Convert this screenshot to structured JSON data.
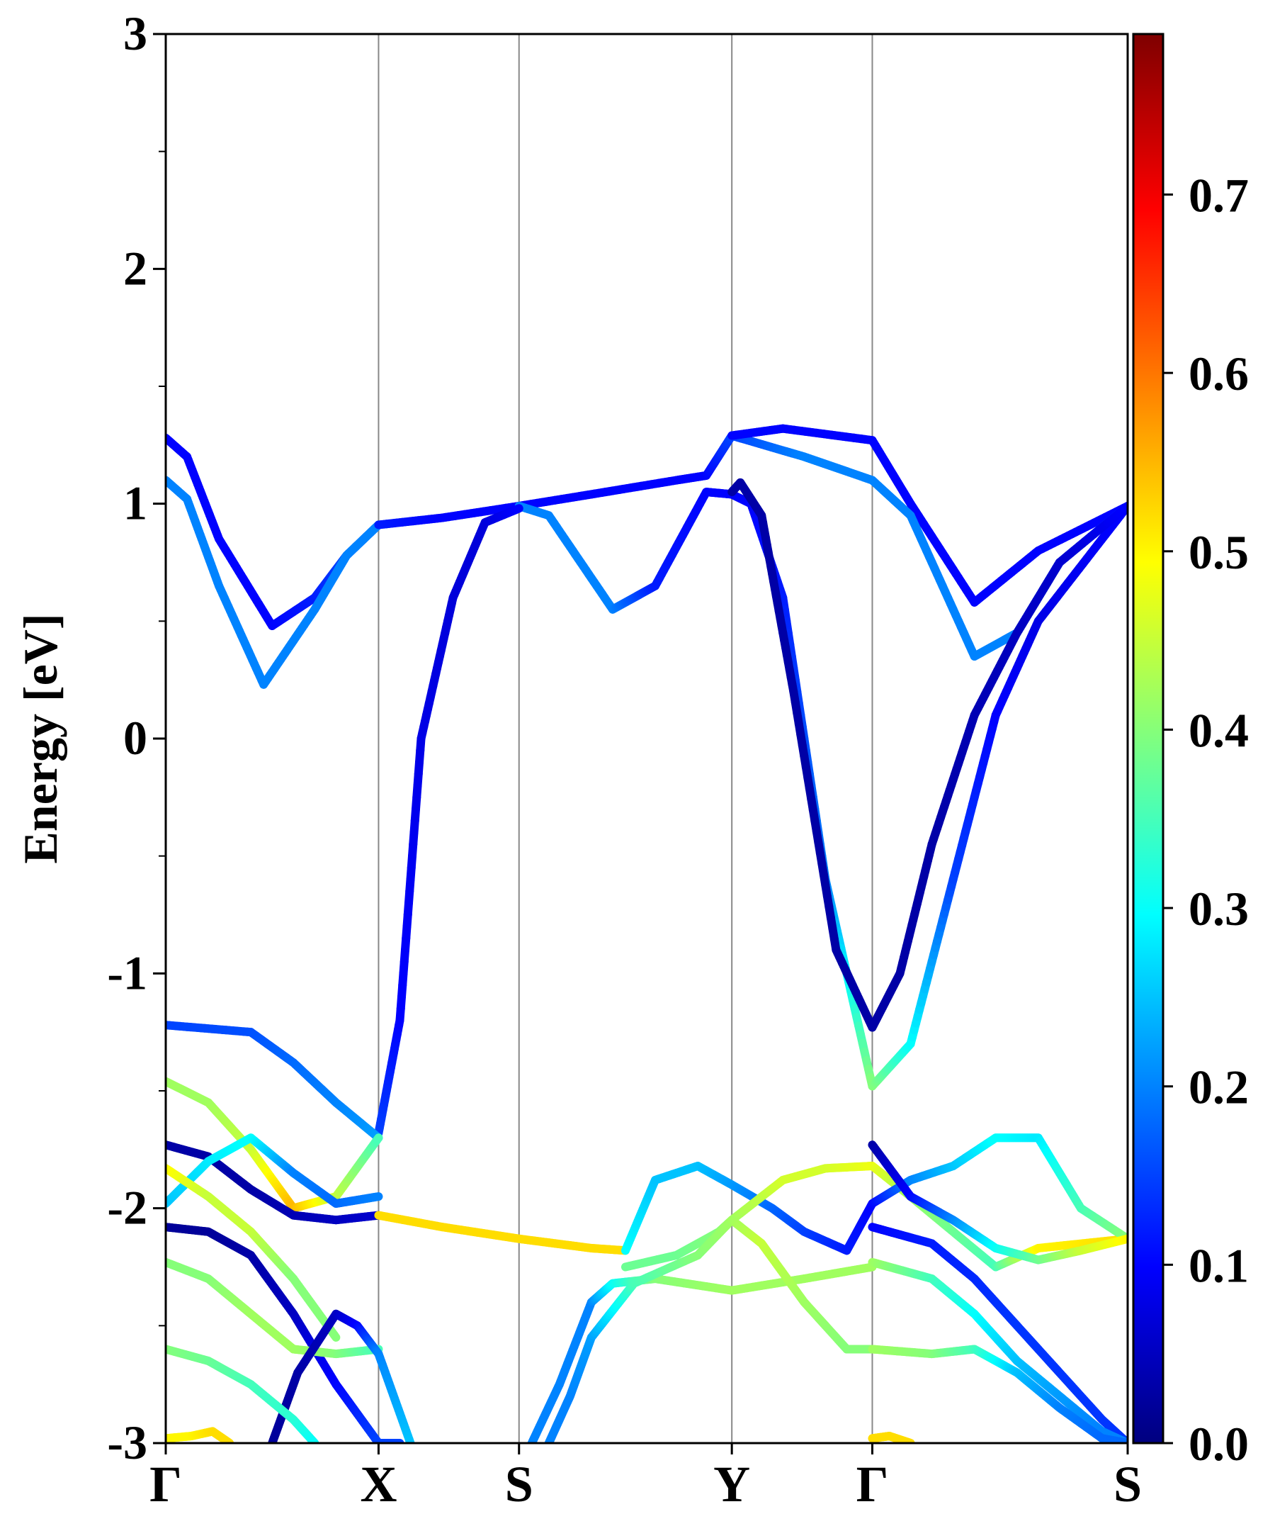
{
  "chart_data": {
    "type": "line",
    "title": "",
    "ylabel": "Energy [eV]",
    "xlabel": "",
    "ylim": [
      -3,
      3
    ],
    "yticks": [
      "3",
      "2",
      "1",
      "0",
      "-1",
      "-2",
      "-3"
    ],
    "kpoints": [
      {
        "label": "Γ",
        "x": 0.0
      },
      {
        "label": "X",
        "x": 1.0
      },
      {
        "label": "S",
        "x": 1.66
      },
      {
        "label": "Y",
        "x": 2.66
      },
      {
        "label": "Γ",
        "x": 3.32
      },
      {
        "label": "S",
        "x": 4.52
      }
    ],
    "xlim": [
      0,
      4.52
    ],
    "colorbar": {
      "min": 0.0,
      "max": 0.79,
      "ticks": [
        "0.0",
        "0.1",
        "0.2",
        "0.3",
        "0.4",
        "0.5",
        "0.6",
        "0.7"
      ],
      "colormap": "jet"
    },
    "bands": [
      {
        "x": [
          0,
          0.1,
          0.25,
          0.5,
          0.7,
          0.85,
          1.0
        ],
        "y": [
          1.28,
          1.2,
          0.85,
          0.48,
          0.6,
          0.78,
          0.91
        ],
        "weights": [
          0.1,
          0.1,
          0.1,
          0.1,
          0.12,
          0.15,
          0.18
        ]
      },
      {
        "x": [
          0,
          0.1,
          0.25,
          0.46,
          0.7,
          0.85,
          1.0
        ],
        "y": [
          1.1,
          1.02,
          0.65,
          0.23,
          0.55,
          0.78,
          0.91
        ],
        "weights": [
          0.2,
          0.2,
          0.2,
          0.2,
          0.2,
          0.2,
          0.2
        ]
      },
      {
        "x": [
          1.0,
          1.3,
          1.66,
          2.0,
          2.4,
          2.54,
          2.66,
          3.0,
          3.32
        ],
        "y": [
          0.91,
          0.94,
          0.99,
          1.04,
          1.1,
          1.12,
          1.29,
          1.2,
          1.1
        ],
        "weights": [
          0.12,
          0.1,
          0.1,
          0.1,
          0.1,
          0.1,
          0.15,
          0.2,
          0.2
        ]
      },
      {
        "x": [
          2.66,
          2.9,
          3.32,
          3.5,
          3.8,
          4.1,
          4.52
        ],
        "y": [
          1.29,
          1.32,
          1.27,
          1.0,
          0.58,
          0.8,
          0.99
        ],
        "weights": [
          0.1,
          0.1,
          0.1,
          0.1,
          0.1,
          0.1,
          0.1
        ]
      },
      {
        "x": [
          3.32,
          3.5,
          3.8,
          4.0,
          4.2,
          4.52
        ],
        "y": [
          1.1,
          0.95,
          0.35,
          0.45,
          0.75,
          0.99
        ],
        "weights": [
          0.2,
          0.2,
          0.2,
          0.2,
          0.2,
          0.2
        ]
      },
      {
        "x": [
          1.66,
          1.8,
          2.1,
          2.3,
          2.54,
          2.66
        ],
        "y": [
          0.99,
          0.95,
          0.55,
          0.65,
          1.05,
          1.04
        ],
        "weights": [
          0.2,
          0.2,
          0.2,
          0.12,
          0.1,
          0.1
        ]
      },
      {
        "x": [
          1.0,
          1.1,
          1.2,
          1.35,
          1.5,
          1.66
        ],
        "y": [
          -1.68,
          -1.2,
          0.0,
          0.6,
          0.92,
          0.98
        ],
        "weights": [
          0.15,
          0.1,
          0.08,
          0.07,
          0.07,
          0.1
        ]
      },
      {
        "x": [
          2.66,
          2.75,
          2.9,
          3.1,
          3.32,
          3.5,
          3.7,
          3.9,
          4.1,
          4.52
        ],
        "y": [
          1.04,
          1.0,
          0.6,
          -0.6,
          -1.48,
          -1.3,
          -0.6,
          0.1,
          0.5,
          0.99
        ],
        "weights": [
          0.1,
          0.1,
          0.12,
          0.2,
          0.4,
          0.3,
          0.15,
          0.1,
          0.08,
          0.1
        ]
      },
      {
        "x": [
          2.66,
          2.7,
          2.8,
          2.95,
          3.15,
          3.32,
          3.45,
          3.6,
          3.8,
          4.0,
          4.2,
          4.52
        ],
        "y": [
          1.05,
          1.09,
          0.95,
          0.2,
          -0.9,
          -1.23,
          -1.0,
          -0.45,
          0.1,
          0.45,
          0.75,
          0.99
        ],
        "weights": [
          0.03,
          0.03,
          0.03,
          0.03,
          0.03,
          0.03,
          0.03,
          0.03,
          0.04,
          0.05,
          0.06,
          0.1
        ]
      },
      {
        "x": [
          0,
          0.4,
          0.6,
          0.8,
          1.0
        ],
        "y": [
          -1.22,
          -1.25,
          -1.38,
          -1.55,
          -1.7
        ],
        "weights": [
          0.15,
          0.16,
          0.18,
          0.2,
          0.22
        ]
      },
      {
        "x": [
          0,
          0.2,
          0.4,
          0.6,
          0.8,
          1.0
        ],
        "y": [
          -1.46,
          -1.55,
          -1.75,
          -2.0,
          -1.95,
          -1.7
        ],
        "weights": [
          0.42,
          0.42,
          0.45,
          0.55,
          0.45,
          0.35
        ]
      },
      {
        "x": [
          0,
          0.2,
          0.4,
          0.6,
          0.8,
          1.0
        ],
        "y": [
          -1.73,
          -1.78,
          -1.92,
          -2.03,
          -2.05,
          -2.03
        ],
        "weights": [
          0.03,
          0.03,
          0.03,
          0.04,
          0.05,
          0.06
        ]
      },
      {
        "x": [
          0,
          0.2,
          0.4,
          0.6,
          0.8,
          1.0
        ],
        "y": [
          -1.98,
          -1.8,
          -1.7,
          -1.85,
          -1.98,
          -1.95
        ],
        "weights": [
          0.25,
          0.28,
          0.3,
          0.2,
          0.18,
          0.2
        ]
      },
      {
        "x": [
          0,
          0.2,
          0.4,
          0.6,
          0.8
        ],
        "y": [
          -1.83,
          -1.95,
          -2.1,
          -2.3,
          -2.55
        ],
        "weights": [
          0.5,
          0.45,
          0.45,
          0.4,
          0.4
        ]
      },
      {
        "x": [
          1.0,
          1.3,
          1.66,
          2.0,
          2.16
        ],
        "y": [
          -2.03,
          -2.08,
          -2.13,
          -2.17,
          -2.18
        ],
        "weights": [
          0.52,
          0.52,
          0.52,
          0.52,
          0.52
        ]
      },
      {
        "x": [
          2.16,
          2.3,
          2.5,
          2.66,
          2.85,
          3.0,
          3.2,
          3.32
        ],
        "y": [
          -2.18,
          -1.88,
          -1.82,
          -1.9,
          -2.0,
          -2.1,
          -2.18,
          -1.98
        ],
        "weights": [
          0.3,
          0.25,
          0.25,
          0.22,
          0.18,
          0.15,
          0.12,
          0.1
        ]
      },
      {
        "x": [
          2.16,
          2.4,
          2.6,
          2.66,
          2.9,
          3.1,
          3.32,
          3.5,
          3.7,
          3.9,
          4.1,
          4.52
        ],
        "y": [
          -2.25,
          -2.2,
          -2.1,
          -2.05,
          -1.88,
          -1.83,
          -1.82,
          -1.95,
          -2.1,
          -2.25,
          -2.17,
          -2.13
        ],
        "weights": [
          0.38,
          0.38,
          0.4,
          0.42,
          0.46,
          0.46,
          0.48,
          0.42,
          0.38,
          0.35,
          0.5,
          0.52
        ]
      },
      {
        "x": [
          3.32,
          3.5,
          3.7,
          3.9,
          4.1,
          4.3,
          4.52
        ],
        "y": [
          -1.98,
          -1.88,
          -1.82,
          -1.7,
          -1.7,
          -2.0,
          -2.13
        ],
        "weights": [
          0.1,
          0.2,
          0.25,
          0.3,
          0.28,
          0.35,
          0.4
        ]
      },
      {
        "x": [
          3.32,
          3.5,
          3.7,
          3.9,
          4.1,
          4.3,
          4.52
        ],
        "y": [
          -1.73,
          -1.95,
          -2.05,
          -2.17,
          -2.22,
          -2.18,
          -2.13
        ],
        "weights": [
          0.03,
          0.1,
          0.2,
          0.3,
          0.38,
          0.45,
          0.5
        ]
      },
      {
        "x": [
          0,
          0.2,
          0.4,
          0.6,
          0.8,
          1.0,
          1.1
        ],
        "y": [
          -2.08,
          -2.1,
          -2.2,
          -2.45,
          -2.75,
          -3.0,
          -3.0
        ],
        "weights": [
          0.02,
          0.02,
          0.03,
          0.05,
          0.1,
          0.15,
          0.15
        ]
      },
      {
        "x": [
          0,
          0.2,
          0.4,
          0.6,
          0.8,
          1.0
        ],
        "y": [
          -2.23,
          -2.3,
          -2.45,
          -2.6,
          -2.62,
          -2.6
        ],
        "weights": [
          0.4,
          0.4,
          0.42,
          0.42,
          0.4,
          0.35
        ]
      },
      {
        "x": [
          0.5,
          0.62,
          0.8,
          0.9,
          1.0,
          1.15
        ],
        "y": [
          -3.0,
          -2.7,
          -2.45,
          -2.5,
          -2.62,
          -3.0
        ],
        "weights": [
          0.02,
          0.03,
          0.05,
          0.1,
          0.2,
          0.25
        ]
      },
      {
        "x": [
          0,
          0.2,
          0.4,
          0.6,
          0.7
        ],
        "y": [
          -2.6,
          -2.65,
          -2.75,
          -2.9,
          -3.0
        ],
        "weights": [
          0.4,
          0.38,
          0.35,
          0.33,
          0.3
        ]
      },
      {
        "x": [
          0,
          0.12,
          0.22,
          0.3
        ],
        "y": [
          -2.98,
          -2.97,
          -2.95,
          -3.0
        ],
        "weights": [
          0.5,
          0.5,
          0.52,
          0.52
        ]
      },
      {
        "x": [
          1.72,
          1.85,
          2.0,
          2.1,
          2.3,
          2.66,
          3.0,
          3.32
        ],
        "y": [
          -3.0,
          -2.75,
          -2.4,
          -2.32,
          -2.3,
          -2.35,
          -2.3,
          -2.25
        ],
        "weights": [
          0.2,
          0.2,
          0.2,
          0.3,
          0.4,
          0.42,
          0.42,
          0.42
        ]
      },
      {
        "x": [
          1.8,
          1.9,
          2.0,
          2.2,
          2.5,
          2.66,
          2.8,
          3.0,
          3.2,
          3.32
        ],
        "y": [
          -3.0,
          -2.8,
          -2.55,
          -2.32,
          -2.2,
          -2.05,
          -2.15,
          -2.4,
          -2.6,
          -2.6
        ],
        "weights": [
          0.2,
          0.2,
          0.22,
          0.35,
          0.4,
          0.42,
          0.45,
          0.42,
          0.4,
          0.4
        ]
      },
      {
        "x": [
          3.32,
          3.6,
          3.8,
          4.0,
          4.2,
          4.4,
          4.52
        ],
        "y": [
          -2.08,
          -2.15,
          -2.3,
          -2.5,
          -2.7,
          -2.9,
          -3.0
        ],
        "weights": [
          0.1,
          0.12,
          0.13,
          0.14,
          0.14,
          0.14,
          0.14
        ]
      },
      {
        "x": [
          3.32,
          3.6,
          3.8,
          4.0,
          4.2,
          4.4,
          4.52
        ],
        "y": [
          -2.23,
          -2.3,
          -2.45,
          -2.65,
          -2.8,
          -2.95,
          -3.0
        ],
        "weights": [
          0.42,
          0.35,
          0.3,
          0.25,
          0.22,
          0.2,
          0.2
        ]
      },
      {
        "x": [
          3.32,
          3.6,
          3.8,
          4.0,
          4.2,
          4.4,
          4.52
        ],
        "y": [
          -2.6,
          -2.62,
          -2.6,
          -2.7,
          -2.85,
          -2.98,
          -3.0
        ],
        "weights": [
          0.42,
          0.4,
          0.35,
          0.25,
          0.2,
          0.18,
          0.18
        ]
      },
      {
        "x": [
          3.32,
          3.4,
          3.5
        ],
        "y": [
          -2.98,
          -2.97,
          -3.0
        ],
        "weights": [
          0.52,
          0.52,
          0.52
        ]
      }
    ]
  }
}
